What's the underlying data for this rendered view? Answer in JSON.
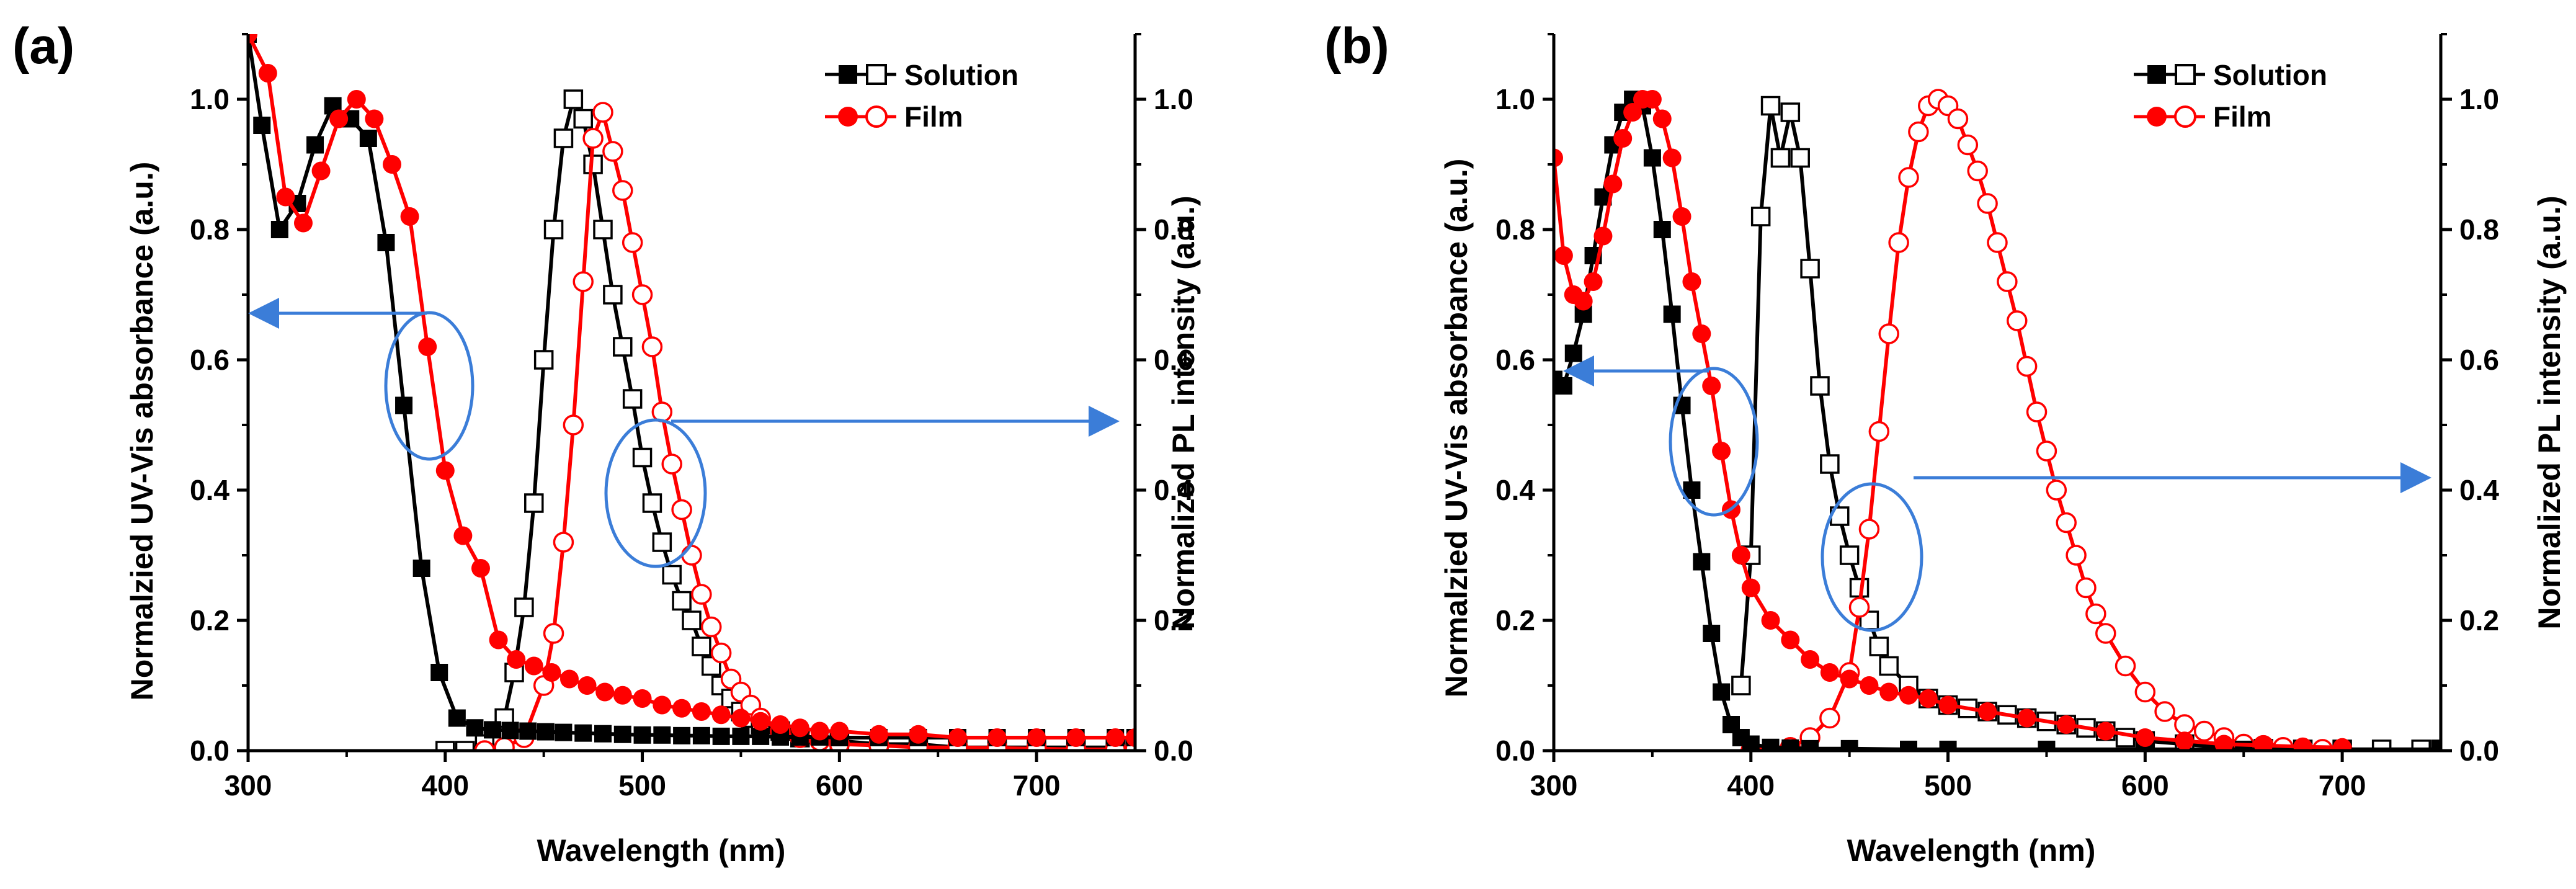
{
  "figure": {
    "panel_labels": [
      "(a)",
      "(b)"
    ]
  },
  "colors": {
    "solution": "#000000",
    "film": "#ff0000",
    "annotation": "#3b7dd8",
    "axis": "#000000"
  },
  "chart_data": [
    {
      "type": "line",
      "panel": "(a)",
      "xlabel": "Wavelength (nm)",
      "ylabel": "Normalzied UV-Vis absorbance (a.u.)",
      "y2label": "Normalized PL intensity (a.u.)",
      "xlim": [
        300,
        750
      ],
      "ylim": [
        0,
        1.1
      ],
      "y2lim": [
        0,
        1.1
      ],
      "xticks": [
        300,
        400,
        500,
        600,
        700
      ],
      "yticks": [
        0.0,
        0.2,
        0.4,
        0.6,
        0.8,
        1.0
      ],
      "xtick_labels": [
        "300",
        "400",
        "500",
        "600",
        "700"
      ],
      "ytick_labels": [
        "0.0",
        "0.2",
        "0.4",
        "0.6",
        "0.8",
        "1.0"
      ],
      "legend": {
        "position": "top-right",
        "entries": [
          "Solution",
          "Film"
        ]
      },
      "series": [
        {
          "name": "Solution",
          "kind": "absorbance",
          "marker": "square-filled",
          "color": "#000000",
          "x": [
            300,
            307,
            316,
            325,
            334,
            343,
            352,
            361,
            370,
            379,
            388,
            397,
            406,
            415,
            424,
            433,
            442,
            451,
            460,
            470,
            480,
            490,
            500,
            510,
            520,
            530,
            540,
            550,
            560,
            570,
            580,
            590,
            600,
            620,
            640,
            660,
            680,
            700,
            720,
            740,
            750
          ],
          "y": [
            1.1,
            0.96,
            0.8,
            0.84,
            0.93,
            0.99,
            0.97,
            0.94,
            0.78,
            0.53,
            0.28,
            0.12,
            0.05,
            0.035,
            0.032,
            0.031,
            0.03,
            0.029,
            0.028,
            0.027,
            0.026,
            0.025,
            0.024,
            0.024,
            0.023,
            0.023,
            0.022,
            0.022,
            0.022,
            0.021,
            0.021,
            0.021,
            0.02,
            0.02,
            0.02,
            0.02,
            0.02,
            0.02,
            0.02,
            0.02,
            0.02
          ]
        },
        {
          "name": "Solution",
          "kind": "PL",
          "marker": "square-open",
          "color": "#000000",
          "x": [
            400,
            410,
            420,
            430,
            435,
            440,
            445,
            450,
            455,
            460,
            465,
            470,
            475,
            480,
            485,
            490,
            495,
            500,
            505,
            510,
            515,
            520,
            525,
            530,
            535,
            540,
            545,
            550,
            555,
            560,
            570,
            580,
            600,
            620,
            640,
            660,
            680,
            700,
            720,
            740,
            750
          ],
          "y": [
            0.0,
            0.0,
            0.01,
            0.05,
            0.12,
            0.22,
            0.38,
            0.6,
            0.8,
            0.94,
            1.0,
            0.97,
            0.9,
            0.8,
            0.7,
            0.62,
            0.54,
            0.45,
            0.38,
            0.32,
            0.27,
            0.23,
            0.2,
            0.16,
            0.13,
            0.1,
            0.08,
            0.06,
            0.05,
            0.04,
            0.03,
            0.02,
            0.015,
            0.01,
            0.01,
            0.005,
            0.005,
            0.005,
            0.005,
            0.005,
            0.005
          ]
        },
        {
          "name": "Film",
          "kind": "absorbance",
          "marker": "circle-filled",
          "color": "#ff0000",
          "x": [
            300,
            310,
            319,
            328,
            337,
            346,
            355,
            364,
            373,
            382,
            391,
            400,
            409,
            418,
            427,
            436,
            445,
            454,
            463,
            472,
            481,
            490,
            500,
            510,
            520,
            530,
            540,
            550,
            560,
            570,
            580,
            590,
            600,
            620,
            640,
            660,
            680,
            700,
            720,
            740,
            750
          ],
          "y": [
            1.1,
            1.04,
            0.85,
            0.81,
            0.89,
            0.97,
            1.0,
            0.97,
            0.9,
            0.82,
            0.62,
            0.43,
            0.33,
            0.28,
            0.17,
            0.14,
            0.13,
            0.12,
            0.11,
            0.1,
            0.09,
            0.085,
            0.08,
            0.07,
            0.065,
            0.06,
            0.055,
            0.05,
            0.045,
            0.04,
            0.035,
            0.03,
            0.03,
            0.025,
            0.025,
            0.02,
            0.02,
            0.02,
            0.02,
            0.02,
            0.02
          ]
        },
        {
          "name": "Film",
          "kind": "PL",
          "marker": "circle-open",
          "color": "#ff0000",
          "x": [
            420,
            430,
            440,
            450,
            455,
            460,
            465,
            470,
            475,
            480,
            485,
            490,
            495,
            500,
            505,
            510,
            515,
            520,
            525,
            530,
            535,
            540,
            545,
            550,
            555,
            560,
            570,
            580,
            590,
            600,
            620,
            640,
            660,
            680,
            700,
            720,
            740,
            750
          ],
          "y": [
            0.0,
            0.005,
            0.02,
            0.1,
            0.18,
            0.32,
            0.5,
            0.72,
            0.94,
            0.98,
            0.92,
            0.86,
            0.78,
            0.7,
            0.62,
            0.52,
            0.44,
            0.37,
            0.3,
            0.24,
            0.19,
            0.15,
            0.11,
            0.09,
            0.07,
            0.05,
            0.03,
            0.02,
            0.015,
            0.01,
            0.008,
            0.005,
            0.005,
            0.004,
            0.003,
            0.002,
            0.002,
            0.002
          ]
        }
      ]
    },
    {
      "type": "line",
      "panel": "(b)",
      "xlabel": "Wavelength (nm)",
      "ylabel": "Normalzied UV-Vis absorbance (a.u.)",
      "y2label": "Normalized PL intensity (a.u.)",
      "xlim": [
        300,
        750
      ],
      "ylim": [
        0,
        1.1
      ],
      "y2lim": [
        0,
        1.1
      ],
      "xticks": [
        300,
        400,
        500,
        600,
        700
      ],
      "yticks": [
        0.0,
        0.2,
        0.4,
        0.6,
        0.8,
        1.0
      ],
      "xtick_labels": [
        "300",
        "400",
        "500",
        "600",
        "700"
      ],
      "ytick_labels": [
        "0.0",
        "0.2",
        "0.4",
        "0.6",
        "0.8",
        "1.0"
      ],
      "legend": {
        "position": "top-center",
        "entries": [
          "Solution",
          "Film"
        ]
      },
      "series": [
        {
          "name": "Solution",
          "kind": "absorbance",
          "marker": "square-filled",
          "color": "#000000",
          "x": [
            300,
            305,
            310,
            315,
            320,
            325,
            330,
            335,
            340,
            345,
            350,
            355,
            360,
            365,
            370,
            375,
            380,
            385,
            390,
            395,
            400,
            410,
            420,
            430,
            450,
            480,
            500,
            550,
            600,
            650,
            700,
            750
          ],
          "y": [
            0.57,
            0.56,
            0.61,
            0.67,
            0.76,
            0.85,
            0.93,
            0.98,
            1.0,
            0.99,
            0.91,
            0.8,
            0.67,
            0.53,
            0.4,
            0.29,
            0.18,
            0.09,
            0.04,
            0.02,
            0.01,
            0.005,
            0.004,
            0.003,
            0.003,
            0.002,
            0.002,
            0.002,
            0.002,
            0.002,
            0.002,
            0.002
          ]
        },
        {
          "name": "Solution",
          "kind": "PL",
          "marker": "square-open",
          "color": "#000000",
          "x": [
            395,
            400,
            405,
            410,
            415,
            420,
            425,
            430,
            435,
            440,
            445,
            450,
            455,
            460,
            465,
            470,
            480,
            490,
            500,
            510,
            520,
            530,
            540,
            550,
            560,
            570,
            580,
            590,
            600,
            620,
            640,
            660,
            680,
            700,
            720,
            740,
            750
          ],
          "y": [
            0.1,
            0.3,
            0.82,
            0.99,
            0.91,
            0.98,
            0.91,
            0.74,
            0.56,
            0.44,
            0.36,
            0.3,
            0.25,
            0.2,
            0.16,
            0.13,
            0.1,
            0.08,
            0.07,
            0.065,
            0.06,
            0.055,
            0.05,
            0.045,
            0.04,
            0.035,
            0.03,
            0.02,
            0.015,
            0.01,
            0.005,
            0.003,
            0.002,
            0.002,
            0.002,
            0.002,
            0.002
          ]
        },
        {
          "name": "Film",
          "kind": "absorbance",
          "marker": "circle-filled",
          "color": "#ff0000",
          "x": [
            300,
            305,
            310,
            315,
            320,
            325,
            330,
            335,
            340,
            345,
            350,
            355,
            360,
            365,
            370,
            375,
            380,
            385,
            390,
            395,
            400,
            410,
            420,
            430,
            440,
            450,
            460,
            470,
            480,
            490,
            500,
            520,
            540,
            560,
            580,
            600,
            620,
            640,
            660,
            680,
            700
          ],
          "y": [
            0.91,
            0.76,
            0.7,
            0.69,
            0.72,
            0.79,
            0.87,
            0.94,
            0.98,
            1.0,
            1.0,
            0.97,
            0.91,
            0.82,
            0.72,
            0.64,
            0.56,
            0.46,
            0.37,
            0.3,
            0.25,
            0.2,
            0.17,
            0.14,
            0.12,
            0.11,
            0.1,
            0.09,
            0.085,
            0.08,
            0.07,
            0.06,
            0.05,
            0.04,
            0.03,
            0.02,
            0.015,
            0.01,
            0.008,
            0.006,
            0.005
          ]
        },
        {
          "name": "Film",
          "kind": "PL",
          "marker": "circle-open",
          "color": "#ff0000",
          "x": [
            400,
            410,
            420,
            430,
            440,
            450,
            455,
            460,
            465,
            470,
            475,
            480,
            485,
            490,
            495,
            500,
            505,
            510,
            515,
            520,
            525,
            530,
            535,
            540,
            545,
            550,
            555,
            560,
            565,
            570,
            575,
            580,
            590,
            600,
            610,
            620,
            630,
            640,
            650,
            660,
            670,
            680,
            690,
            700
          ],
          "y": [
            0.0,
            0.0,
            0.005,
            0.02,
            0.05,
            0.12,
            0.22,
            0.34,
            0.49,
            0.64,
            0.78,
            0.88,
            0.95,
            0.99,
            1.0,
            0.99,
            0.97,
            0.93,
            0.89,
            0.84,
            0.78,
            0.72,
            0.66,
            0.59,
            0.52,
            0.46,
            0.4,
            0.35,
            0.3,
            0.25,
            0.21,
            0.18,
            0.13,
            0.09,
            0.06,
            0.04,
            0.03,
            0.02,
            0.01,
            0.008,
            0.005,
            0.003,
            0.002,
            0.001
          ]
        }
      ]
    }
  ]
}
